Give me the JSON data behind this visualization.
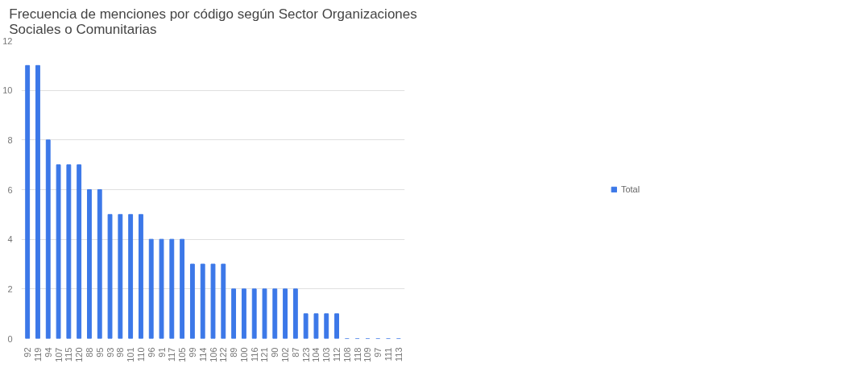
{
  "chart_data": {
    "type": "bar",
    "title": "Frecuencia de menciones por código según Sector Organizaciones\nSociales o Comunitarias",
    "categories": [
      "92",
      "119",
      "94",
      "107",
      "115",
      "120",
      "88",
      "95",
      "93",
      "98",
      "101",
      "110",
      "96",
      "91",
      "117",
      "105",
      "99",
      "114",
      "106",
      "122",
      "89",
      "100",
      "116",
      "121",
      "90",
      "102",
      "87",
      "123",
      "104",
      "103",
      "112",
      "108",
      "118",
      "109",
      "97",
      "111",
      "113"
    ],
    "series": [
      {
        "name": "Total",
        "color": "#3c78e8",
        "values": [
          11,
          11,
          8,
          7,
          7,
          7,
          6,
          6,
          5,
          5,
          5,
          5,
          4,
          4,
          4,
          4,
          3,
          3,
          3,
          3,
          2,
          2,
          2,
          2,
          2,
          2,
          2,
          1,
          1,
          1,
          1,
          0,
          0,
          0,
          0,
          0,
          0
        ]
      }
    ],
    "ylim": [
      0,
      12
    ],
    "yticks": [
      0,
      2,
      4,
      6,
      8,
      10,
      12
    ],
    "grid": "y",
    "legend": "right"
  }
}
